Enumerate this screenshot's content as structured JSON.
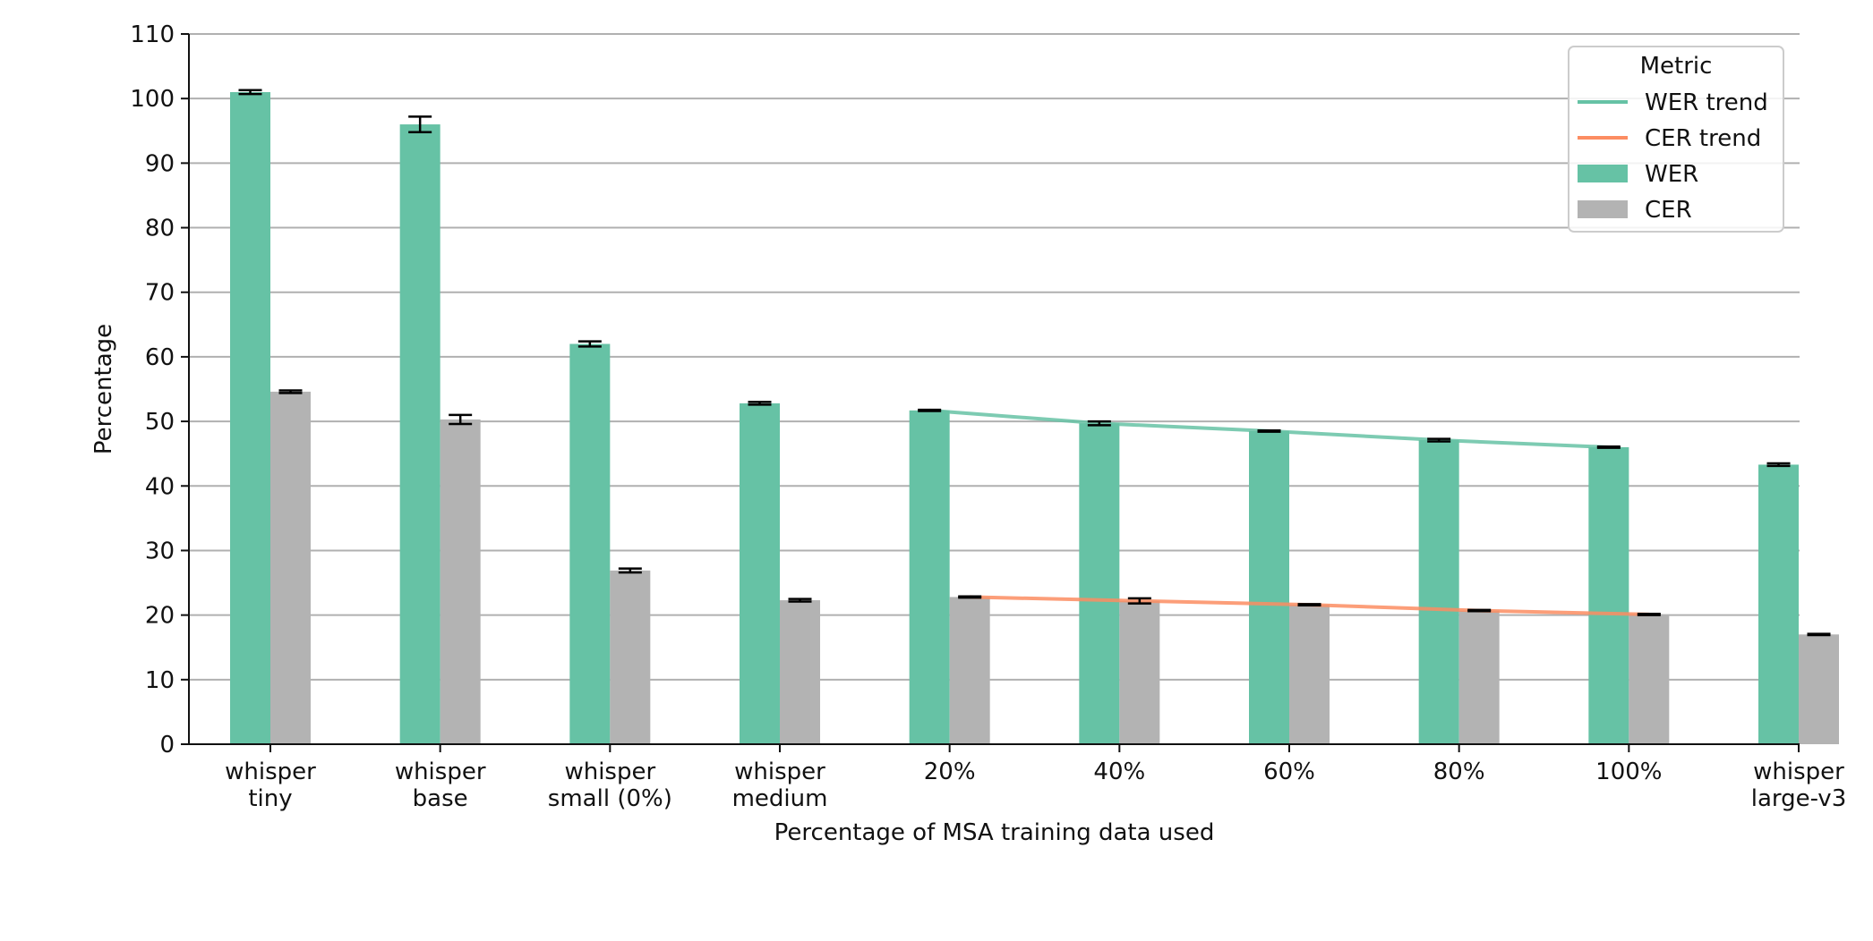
{
  "chart_data": {
    "type": "bar",
    "title": "",
    "xlabel": "Percentage of MSA training data used",
    "ylabel": "Percentage",
    "ylim": [
      0,
      110
    ],
    "yticks": [
      0,
      10,
      20,
      30,
      40,
      50,
      60,
      70,
      80,
      90,
      100,
      110
    ],
    "grid": "horizontal",
    "categories": [
      [
        "whisper",
        "tiny"
      ],
      [
        "whisper",
        "base"
      ],
      [
        "whisper",
        "small (0%)"
      ],
      [
        "whisper",
        "medium"
      ],
      [
        "20%"
      ],
      [
        "40%"
      ],
      [
        "60%"
      ],
      [
        "80%"
      ],
      [
        "100%"
      ],
      [
        "whisper",
        "large-v3"
      ]
    ],
    "series": [
      {
        "name": "WER",
        "color": "#66c2a5",
        "values": [
          101.0,
          96.0,
          62.0,
          52.8,
          51.7,
          49.7,
          48.5,
          47.1,
          46.0,
          43.3
        ],
        "errors": [
          0.3,
          1.2,
          0.4,
          0.2,
          0.1,
          0.3,
          0.1,
          0.2,
          0.1,
          0.2
        ]
      },
      {
        "name": "CER",
        "color": "#b3b3b3",
        "values": [
          54.6,
          50.3,
          26.9,
          22.3,
          22.8,
          22.2,
          21.6,
          20.7,
          20.1,
          17.0
        ],
        "errors": [
          0.2,
          0.7,
          0.3,
          0.2,
          0.1,
          0.4,
          0.1,
          0.1,
          0.1,
          0.1
        ]
      }
    ],
    "trends": [
      {
        "name": "WER trend",
        "color": "#66c2a5",
        "of": "WER",
        "from_index": 4,
        "to_index": 8
      },
      {
        "name": "CER trend",
        "color": "#fc8d62",
        "of": "CER",
        "from_index": 4,
        "to_index": 8
      }
    ],
    "legend": {
      "title": "Metric",
      "placement": "top-right",
      "entries": [
        {
          "label": "WER trend",
          "kind": "line",
          "color": "#66c2a5"
        },
        {
          "label": "CER trend",
          "kind": "line",
          "color": "#fc8d62"
        },
        {
          "label": "WER",
          "kind": "patch",
          "color": "#66c2a5"
        },
        {
          "label": "CER",
          "kind": "patch",
          "color": "#b3b3b3"
        }
      ]
    }
  }
}
